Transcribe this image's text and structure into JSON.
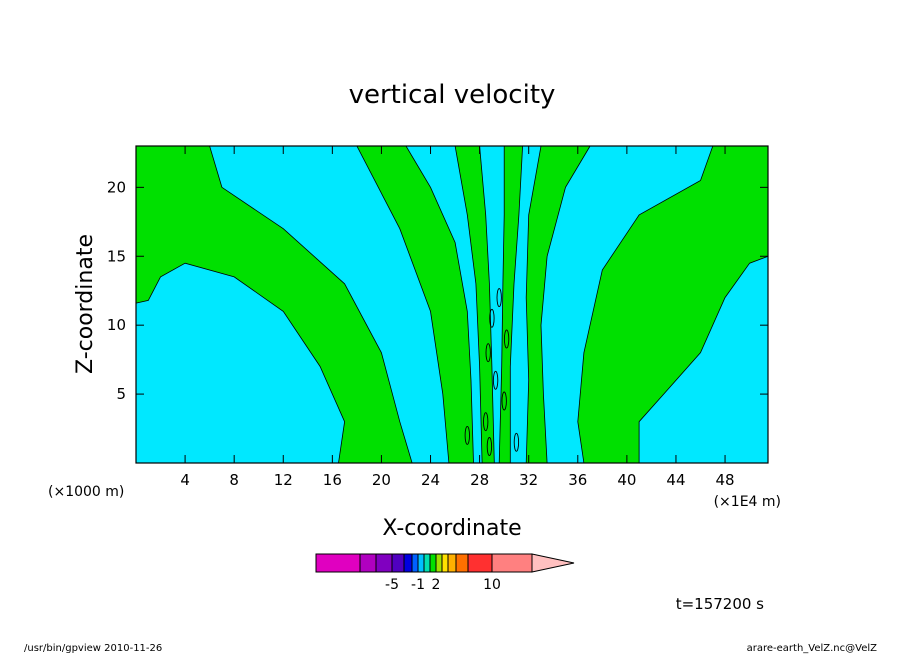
{
  "chart_data": {
    "type": "heatmap",
    "title": "vertical velocity",
    "xlabel": "X-coordinate",
    "ylabel": "Z-coordinate",
    "x_unit_left": "(×1000 m)",
    "x_unit_right": "(×1E4 m)",
    "xlim": [
      0,
      51.5
    ],
    "ylim": [
      0,
      23
    ],
    "x_ticks": [
      "4",
      "8",
      "12",
      "16",
      "20",
      "24",
      "28",
      "32",
      "36",
      "40",
      "44",
      "48"
    ],
    "y_ticks": [
      "5",
      "10",
      "15",
      "20"
    ],
    "colorbar": {
      "labels": [
        "-5",
        "-1",
        "2",
        "10"
      ],
      "colors": [
        "#e000c0",
        "#b000c0",
        "#8000c0",
        "#5000c0",
        "#0000e0",
        "#0060ff",
        "#00c0ff",
        "#00e0b0",
        "#00e000",
        "#a0e000",
        "#ffe000",
        "#ffb000",
        "#ff7000",
        "#ff3030",
        "#ff8080",
        "#ffc0c0"
      ]
    },
    "time_label": "t=157200 s",
    "regions": {
      "positive_color": "#00e000",
      "negative_color": "#00e8ff"
    }
  },
  "footer": {
    "left": "/usr/bin/gpview  2010-11-26",
    "right": "arare-earth_VelZ.nc@VelZ"
  }
}
